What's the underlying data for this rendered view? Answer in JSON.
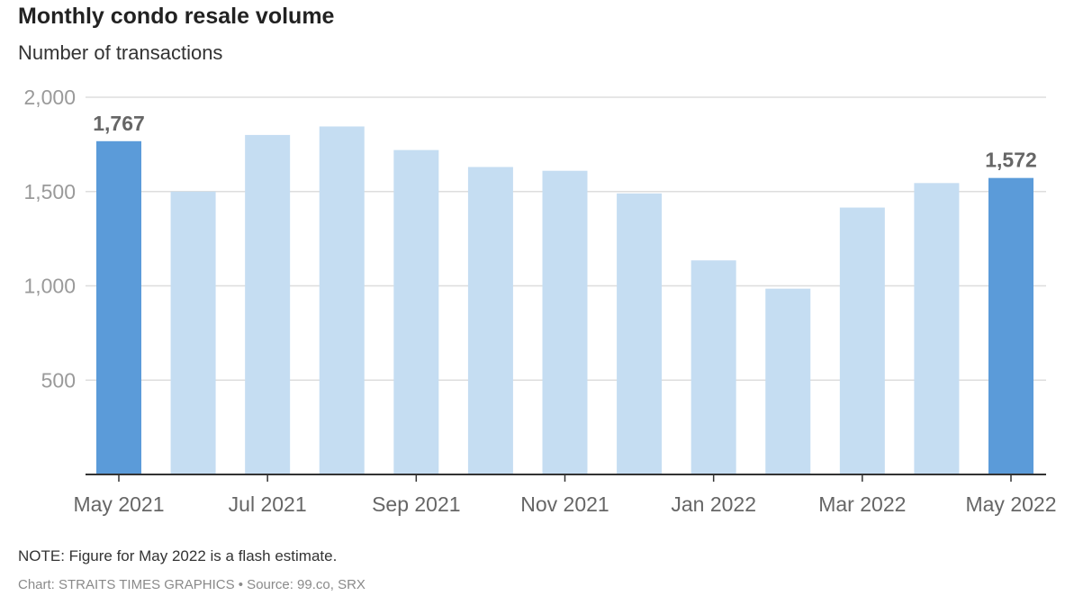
{
  "title": "Monthly condo resale volume",
  "subtitle": "Number of transactions",
  "note": "NOTE: Figure for May 2022 is a flash estimate.",
  "credit": "Chart: STRAITS TIMES GRAPHICS • Source: 99.co, SRX",
  "colors": {
    "highlight": "#5b9bd9",
    "regular": "#c5ddf2",
    "grid": "#dddddd",
    "axis": "#333333"
  },
  "chart_data": {
    "type": "bar",
    "categories": [
      "May 2021",
      "Jun 2021",
      "Jul 2021",
      "Aug 2021",
      "Sep 2021",
      "Oct 2021",
      "Nov 2021",
      "Dec 2021",
      "Jan 2022",
      "Feb 2022",
      "Mar 2022",
      "Apr 2022",
      "May 2022"
    ],
    "values": [
      1767,
      1500,
      1800,
      1845,
      1720,
      1630,
      1610,
      1490,
      1135,
      985,
      1415,
      1545,
      1572
    ],
    "highlighted": [
      "May 2021",
      "May 2022"
    ],
    "data_labels": [
      {
        "category": "May 2021",
        "text": "1,767"
      },
      {
        "category": "May 2022",
        "text": "1,572"
      }
    ],
    "x_tick_labels": [
      {
        "category": "May 2021",
        "text": "May 2021"
      },
      {
        "category": "Jul 2021",
        "text": "Jul 2021"
      },
      {
        "category": "Sep 2021",
        "text": "Sep 2021"
      },
      {
        "category": "Nov 2021",
        "text": "Nov 2021"
      },
      {
        "category": "Jan 2022",
        "text": "Jan 2022"
      },
      {
        "category": "Mar 2022",
        "text": "Mar 2022"
      },
      {
        "category": "May 2022",
        "text": "May 2022"
      }
    ],
    "y_ticks": [
      {
        "value": 500,
        "text": "500"
      },
      {
        "value": 1000,
        "text": "1,000"
      },
      {
        "value": 1500,
        "text": "1,500"
      },
      {
        "value": 2000,
        "text": "2,000"
      }
    ],
    "ylim": [
      0,
      2000
    ],
    "grid": true,
    "legend": "none",
    "xlabel": "",
    "ylabel": ""
  }
}
